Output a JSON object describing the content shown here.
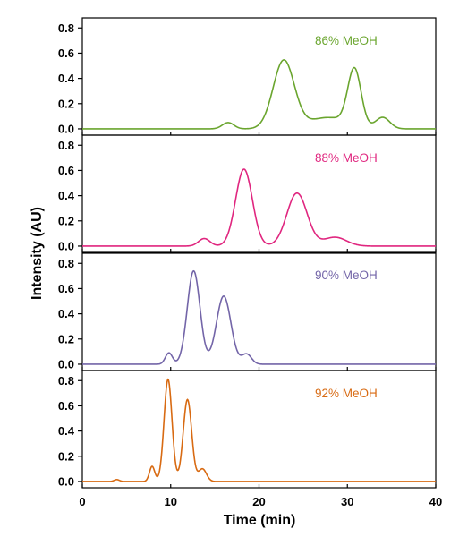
{
  "chart_data": {
    "type": "line",
    "xlabel": "Time (min)",
    "ylabel": "Intensity (AU)",
    "xlim": [
      0,
      40
    ],
    "xticks": [
      "0",
      "10",
      "20",
      "30",
      "40"
    ],
    "ylim": [
      -0.05,
      0.88
    ],
    "yticks": [
      "0.0",
      "0.2",
      "0.4",
      "0.6",
      "0.8"
    ],
    "grid": false,
    "panels": [
      {
        "label": "86% MeOH",
        "color": "#6aa52e",
        "baseline": 0.0,
        "peaks": [
          {
            "t": 16.5,
            "h": 0.05,
            "w": 0.65
          },
          {
            "t": 22.8,
            "h": 0.54,
            "w": 1.2
          },
          {
            "t": 27.8,
            "h": 0.09,
            "w": 2.2
          },
          {
            "t": 30.8,
            "h": 0.45,
            "w": 0.75
          },
          {
            "t": 34.0,
            "h": 0.09,
            "w": 0.8
          }
        ]
      },
      {
        "label": "88% MeOH",
        "color": "#e0267f",
        "baseline": 0.0,
        "peaks": [
          {
            "t": 13.8,
            "h": 0.06,
            "w": 0.65
          },
          {
            "t": 18.3,
            "h": 0.61,
            "w": 0.95
          },
          {
            "t": 24.3,
            "h": 0.42,
            "w": 1.15
          },
          {
            "t": 28.6,
            "h": 0.07,
            "w": 1.3
          }
        ]
      },
      {
        "label": "90% MeOH",
        "color": "#7365a8",
        "baseline": 0.0,
        "peaks": [
          {
            "t": 9.8,
            "h": 0.09,
            "w": 0.4
          },
          {
            "t": 12.6,
            "h": 0.74,
            "w": 0.72
          },
          {
            "t": 16.0,
            "h": 0.54,
            "w": 0.82
          },
          {
            "t": 18.6,
            "h": 0.08,
            "w": 0.55
          }
        ]
      },
      {
        "label": "92% MeOH",
        "color": "#d86a12",
        "baseline": 0.0,
        "peaks": [
          {
            "t": 3.9,
            "h": 0.015,
            "w": 0.3
          },
          {
            "t": 7.9,
            "h": 0.12,
            "w": 0.3
          },
          {
            "t": 9.7,
            "h": 0.81,
            "w": 0.45
          },
          {
            "t": 11.9,
            "h": 0.65,
            "w": 0.48
          },
          {
            "t": 13.6,
            "h": 0.1,
            "w": 0.45
          }
        ]
      }
    ]
  }
}
